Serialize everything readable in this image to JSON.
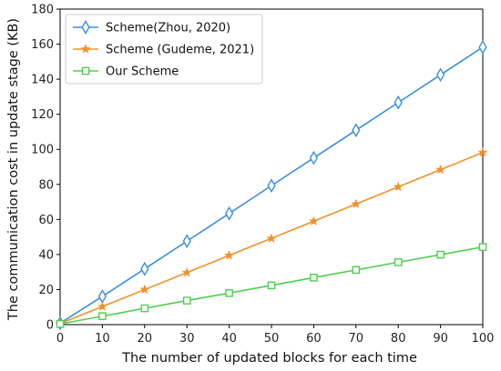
{
  "chart_data": {
    "type": "line",
    "xlabel": "The number of updated blocks for each time",
    "ylabel": "The communication cost in update stage (KB)",
    "xlim": [
      0,
      100
    ],
    "ylim": [
      0,
      180
    ],
    "xticks": [
      0,
      10,
      20,
      30,
      40,
      50,
      60,
      70,
      80,
      90,
      100
    ],
    "yticks": [
      0,
      20,
      40,
      60,
      80,
      100,
      120,
      140,
      160,
      180
    ],
    "grid": false,
    "legend_position": "top-left",
    "x": [
      0,
      10,
      20,
      30,
      40,
      50,
      60,
      70,
      80,
      90,
      100
    ],
    "series": [
      {
        "name": "Scheme(Zhou, 2020)",
        "color": "#3a8fd9",
        "marker": "thin-diamond",
        "values": [
          0.8,
          16.1,
          31.8,
          47.6,
          63.4,
          79.3,
          95.1,
          110.9,
          126.7,
          142.5,
          158.3
        ]
      },
      {
        "name": "Scheme (Gudeme, 2021)",
        "color": "#f0922b",
        "marker": "star",
        "values": [
          0.6,
          10.3,
          20.0,
          29.7,
          39.5,
          49.2,
          59.0,
          68.8,
          78.6,
          88.4,
          98.2
        ]
      },
      {
        "name": "Our Scheme",
        "color": "#4fcf4f",
        "marker": "square",
        "values": [
          0.4,
          4.8,
          9.3,
          13.7,
          18.0,
          22.4,
          26.8,
          31.2,
          35.6,
          39.9,
          44.3
        ]
      }
    ]
  }
}
